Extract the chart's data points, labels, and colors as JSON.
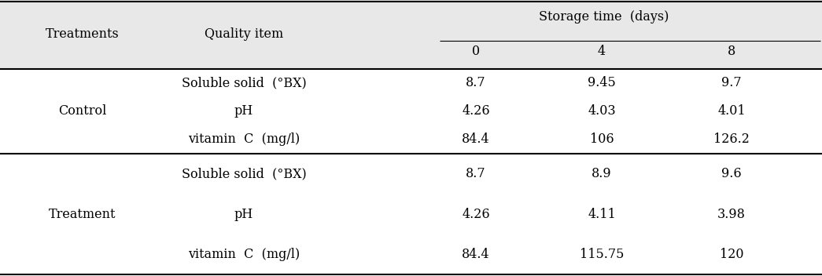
{
  "title_col1": "Treatments",
  "title_col2": "Quality item",
  "title_storage": "Storage time  (days)",
  "storage_days": [
    "0",
    "4",
    "8"
  ],
  "rows": [
    {
      "treatment": "Control",
      "items": [
        {
          "name": "Soluble solid  (°BX)",
          "values": [
            "8.7",
            "9.45",
            "9.7"
          ]
        },
        {
          "name": "pH",
          "values": [
            "4.26",
            "4.03",
            "4.01"
          ]
        },
        {
          "name": "vitamin  C  (mg/l)",
          "values": [
            "84.4",
            "106",
            "126.2"
          ]
        }
      ]
    },
    {
      "treatment": "Treatment",
      "items": [
        {
          "name": "Soluble solid  (°BX)",
          "values": [
            "8.7",
            "8.9",
            "9.6"
          ]
        },
        {
          "name": "pH",
          "values": [
            "4.26",
            "4.11",
            "3.98"
          ]
        },
        {
          "name": "vitamin  C  (mg/l)",
          "values": [
            "84.4",
            "115.75",
            "120"
          ]
        }
      ]
    }
  ],
  "font_size": 11.5,
  "font_family": "DejaVu Serif",
  "header_bg": "#e8e8e8",
  "fig_width": 10.45,
  "fig_height": 3.52,
  "dpi": 100
}
